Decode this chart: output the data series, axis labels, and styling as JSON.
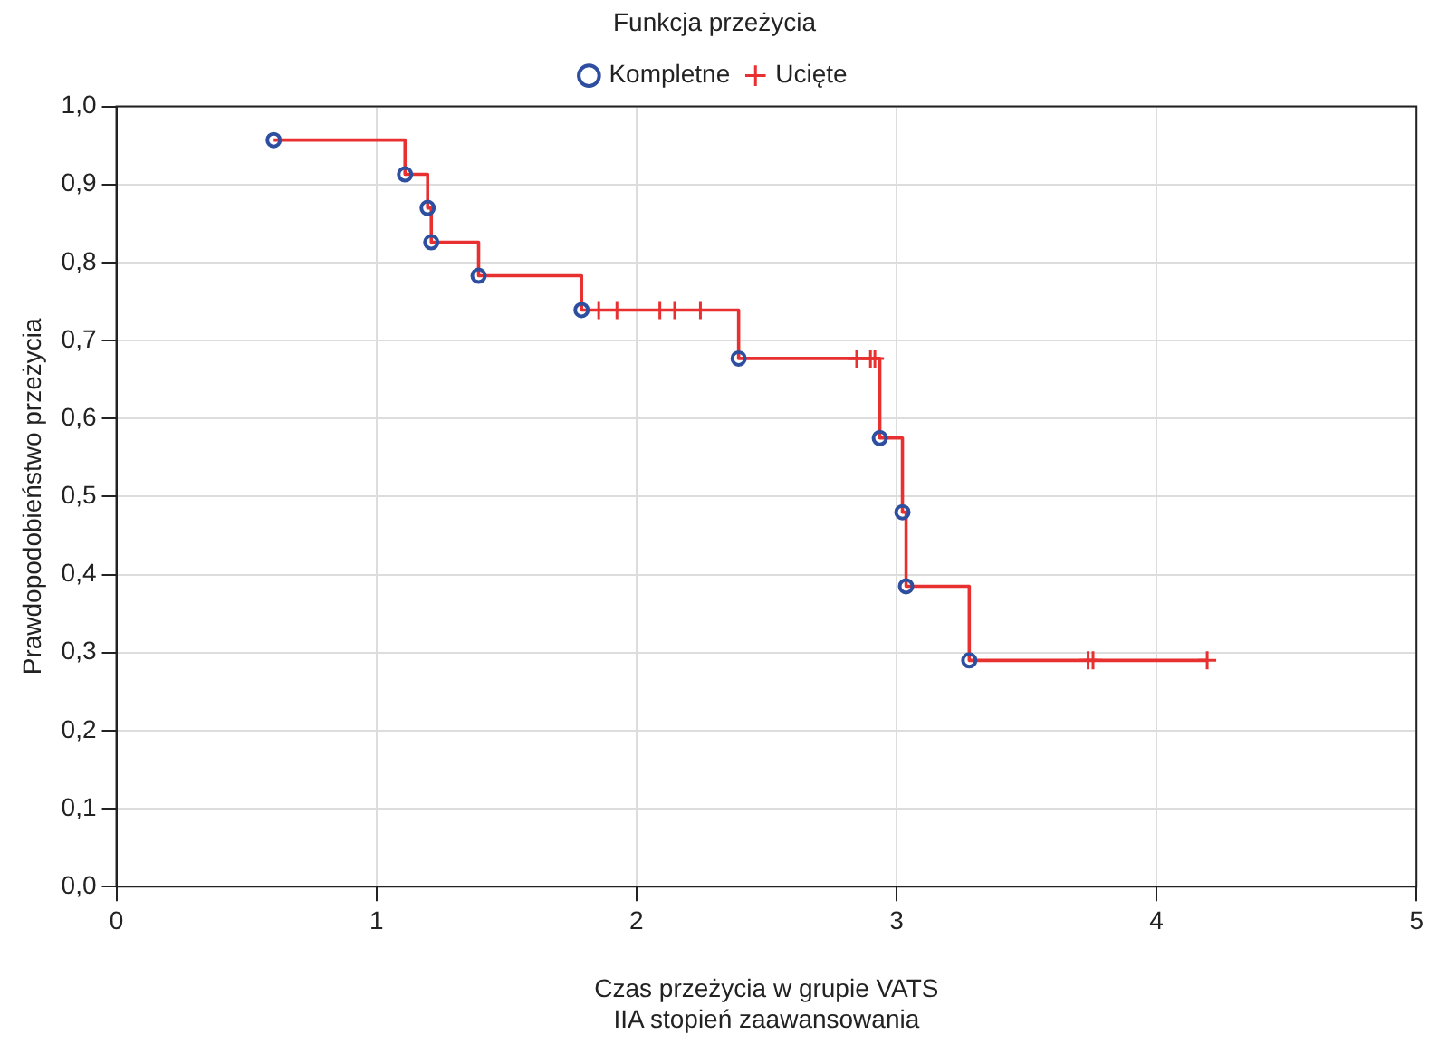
{
  "chart_data": {
    "type": "line",
    "legend_title": "Funkcja przeżycia",
    "xlabel": "Czas przeżycia w grupie VATS\nIIA stopień zaawansowania",
    "ylabel": "Prawdopodobieństwo przeżycia",
    "xlim": [
      0,
      5
    ],
    "xticks": [
      0,
      1,
      2,
      3,
      4,
      5
    ],
    "ylim": [
      0,
      1
    ],
    "yticks": [
      {
        "value": 0,
        "label": "0,0"
      },
      {
        "value": 0.1,
        "label": "0,1"
      },
      {
        "value": 0.2,
        "label": "0,2"
      },
      {
        "value": 0.3,
        "label": "0,3"
      },
      {
        "value": 0.4,
        "label": "0,4"
      },
      {
        "value": 0.5,
        "label": "0,5"
      },
      {
        "value": 0.6,
        "label": "0,6"
      },
      {
        "value": 0.7,
        "label": "0,7"
      },
      {
        "value": 0.8,
        "label": "0,8"
      },
      {
        "value": 0.9,
        "label": "0,9"
      },
      {
        "value": 1,
        "label": "1,0"
      }
    ],
    "grid": true,
    "legend": "top",
    "series": [
      {
        "type": "step",
        "color": "#e83030",
        "marker": "none",
        "x": [
          0.605,
          1.11,
          1.197,
          1.211,
          1.393,
          1.789,
          2.393,
          2.936,
          3.023,
          3.037,
          3.28,
          4.195
        ],
        "values": [
          0.957,
          0.913,
          0.87,
          0.826,
          0.783,
          0.739,
          0.677,
          0.575,
          0.48,
          0.385,
          0.29,
          0.29
        ]
      },
      {
        "type": "scatter",
        "name": "Kompletne",
        "color": "#2e4fa0",
        "marker": "circle",
        "x": [
          0.605,
          1.11,
          1.197,
          1.211,
          1.393,
          1.789,
          2.393,
          2.936,
          3.023,
          3.037,
          3.28
        ],
        "values": [
          0.957,
          0.913,
          0.87,
          0.826,
          0.783,
          0.739,
          0.677,
          0.575,
          0.48,
          0.385,
          0.29
        ]
      },
      {
        "type": "scatter",
        "name": "Ucięte",
        "color": "#e83030",
        "marker": "cross",
        "x": [
          1.855,
          1.925,
          2.09,
          2.147,
          2.246,
          2.847,
          2.9,
          2.917,
          3.737,
          3.756,
          4.195
        ],
        "values": [
          0.739,
          0.739,
          0.739,
          0.739,
          0.739,
          0.677,
          0.677,
          0.677,
          0.29,
          0.29,
          0.29
        ]
      }
    ]
  }
}
